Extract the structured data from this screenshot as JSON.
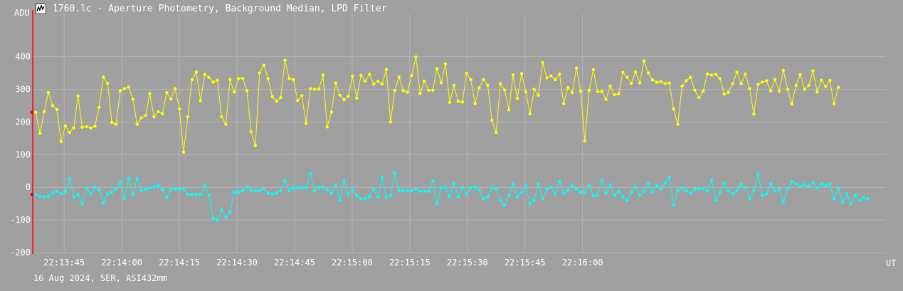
{
  "window": {
    "title": "1760.lc - Aperture Photometry, Background Median, LPD Filter",
    "icon": "lightcurve-app-icon"
  },
  "footer": "16 Aug 2024, SER, ASI432mm",
  "colors": {
    "background": "#a0a0a0",
    "grid": "#b4b4b4",
    "axis": "#ff0000",
    "series1": "#ffff00",
    "series2": "#00ffff",
    "text": "#ffffff"
  },
  "chart_data": {
    "type": "line",
    "ylabel": "ADU",
    "xlabel": "UT",
    "ylim": [
      -200,
      530
    ],
    "xlim_seconds_after_22_13_00": [
      37,
      259
    ],
    "yticks": [
      400,
      300,
      200,
      100,
      0,
      -100,
      -200
    ],
    "xticks": [
      "22:13:45",
      "22:14:00",
      "22:14:15",
      "22:14:30",
      "22:14:45",
      "22:15:00",
      "22:15:15",
      "22:15:30",
      "22:15:45",
      "22:16:00"
    ],
    "xtick_seconds": [
      45,
      60,
      75,
      90,
      105,
      120,
      135,
      150,
      165,
      180
    ],
    "x_start_seconds": 37.6,
    "x_step_seconds": 1.1,
    "grid": true,
    "series": [
      {
        "color": "#ffff00",
        "values": [
          230,
          165,
          232,
          290,
          250,
          238,
          140,
          188,
          168,
          182,
          280,
          184,
          186,
          182,
          187,
          245,
          338,
          318,
          199,
          193,
          295,
          302,
          307,
          270,
          193,
          213,
          220,
          287,
          216,
          232,
          225,
          290,
          270,
          302,
          240,
          108,
          216,
          330,
          353,
          265,
          346,
          336,
          322,
          328,
          216,
          193,
          330,
          292,
          333,
          334,
          296,
          170,
          128,
          350,
          374,
          333,
          277,
          264,
          275,
          389,
          333,
          330,
          266,
          281,
          195,
          302,
          300,
          301,
          344,
          185,
          230,
          320,
          282,
          268,
          278,
          341,
          273,
          343,
          325,
          346,
          316,
          325,
          316,
          361,
          200,
          297,
          338,
          296,
          291,
          342,
          399,
          287,
          325,
          297,
          297,
          363,
          320,
          378,
          260,
          312,
          263,
          261,
          349,
          330,
          256,
          305,
          330,
          312,
          205,
          168,
          317,
          298,
          237,
          344,
          272,
          348,
          292,
          225,
          300,
          282,
          382,
          335,
          341,
          330,
          347,
          256,
          306,
          290,
          365,
          294,
          142,
          297,
          360,
          293,
          294,
          269,
          310,
          284,
          286,
          352,
          337,
          318,
          353,
          320,
          387,
          350,
          329,
          322,
          323,
          318,
          319,
          240,
          193,
          310,
          326,
          337,
          298,
          275,
          294,
          347,
          344,
          346,
          333,
          285,
          291,
          317,
          353,
          317,
          347,
          302,
          224,
          315,
          322,
          326,
          295,
          330,
          294,
          358,
          300,
          255,
          312,
          345,
          300,
          312,
          357,
          292,
          328,
          309,
          327,
          255,
          306
        ]
      },
      {
        "color": "#00ffff",
        "values": [
          -22,
          -28,
          -30,
          -27,
          -18,
          -12,
          -20,
          -14,
          27,
          -30,
          -21,
          -50,
          -3,
          -20,
          0,
          -7,
          -48,
          -20,
          -15,
          -5,
          16,
          -34,
          27,
          -23,
          27,
          -10,
          -7,
          -2,
          2,
          5,
          -8,
          -32,
          -5,
          -5,
          -5,
          -5,
          -22,
          -22,
          -22,
          -22,
          5,
          -25,
          -95,
          -100,
          -70,
          -92,
          -75,
          -15,
          -15,
          -10,
          2,
          -10,
          -12,
          -10,
          -5,
          -18,
          -20,
          -18,
          -10,
          20,
          -10,
          -2,
          -2,
          -2,
          -2,
          42,
          -12,
          0,
          0,
          -8,
          -18,
          5,
          -40,
          20,
          -20,
          -8,
          -25,
          -35,
          -35,
          -28,
          -5,
          -30,
          30,
          -30,
          -25,
          45,
          -10,
          -10,
          -12,
          -10,
          -5,
          -12,
          -12,
          -12,
          20,
          -50,
          -2,
          -2,
          -28,
          13,
          -30,
          0,
          -20,
          -2,
          0,
          -8,
          -35,
          -28,
          -2,
          -5,
          -40,
          -55,
          -25,
          10,
          -30,
          -15,
          5,
          -50,
          -40,
          10,
          -35,
          -5,
          0,
          -20,
          17,
          -20,
          -10,
          5,
          -5,
          -15,
          -15,
          5,
          -25,
          -25,
          22,
          -18,
          8,
          -25,
          -12,
          -30,
          -40,
          -15,
          0,
          -25,
          -12,
          12,
          -15,
          5,
          -5,
          14,
          30,
          -55,
          -10,
          -2,
          -10,
          -18,
          -5,
          -5,
          -5,
          -12,
          20,
          -40,
          -15,
          12,
          -10,
          -20,
          -10,
          10,
          0,
          -35,
          -10,
          40,
          -25,
          -20,
          10,
          -12,
          -5,
          -45,
          -5,
          18,
          10,
          3,
          8,
          3,
          15,
          -2,
          10,
          5,
          10,
          -35,
          -5,
          -45,
          -20,
          -50,
          -25,
          -40,
          -32,
          -35
        ]
      }
    ]
  }
}
